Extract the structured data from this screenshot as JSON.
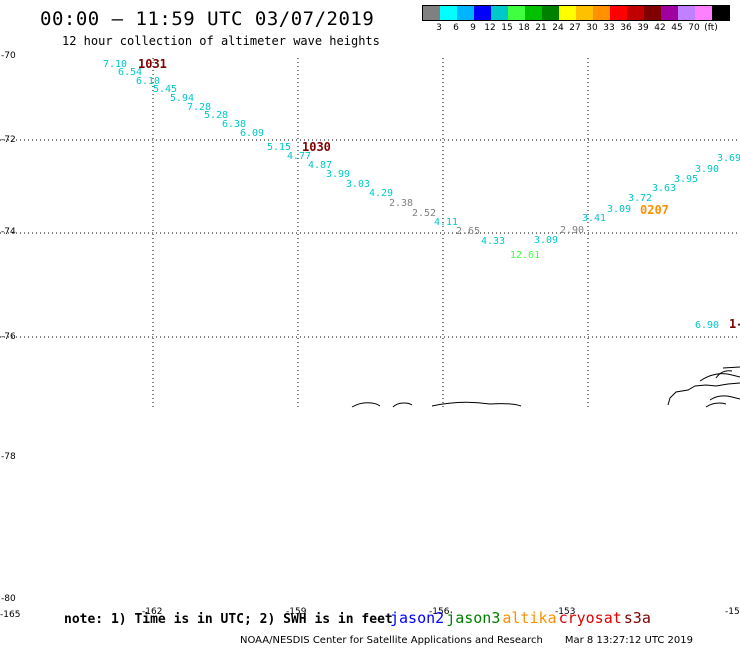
{
  "header": {
    "title": "00:00 – 11:59 UTC 03/07/2019",
    "subtitle": "12 hour collection of altimeter wave heights"
  },
  "legend": {
    "colors": [
      "#808080",
      "#00ffff",
      "#00b4ff",
      "#0000ff",
      "#00c8c8",
      "#40ff40",
      "#00c000",
      "#008000",
      "#ffff00",
      "#ffc000",
      "#ff9000",
      "#ff0000",
      "#c00000",
      "#800000",
      "#a000a0",
      "#c080ff",
      "#ff80ff",
      "#000000"
    ],
    "labels": [
      "3",
      "6",
      "9",
      "12",
      "15",
      "18",
      "21",
      "24",
      "27",
      "30",
      "33",
      "36",
      "39",
      "42",
      "45",
      "70",
      "(ft)"
    ]
  },
  "axes": {
    "lat_labels": [
      "-70",
      "-72",
      "-74",
      "-76",
      "-78",
      "-80"
    ],
    "lon_labels": [
      "-165",
      "-162",
      "-159",
      "-156",
      "-153",
      "-15"
    ]
  },
  "observations": [
    {
      "text": "7.10",
      "color": "#00c8c8"
    },
    {
      "text": "6.54",
      "color": "#00c8c8"
    },
    {
      "text": "6.10",
      "color": "#00c8c8"
    },
    {
      "text": "5.45",
      "color": "#00c8c8"
    },
    {
      "text": "5.94",
      "color": "#00c8c8"
    },
    {
      "text": "7.28",
      "color": "#00c8c8"
    },
    {
      "text": "5.28",
      "color": "#00c8c8"
    },
    {
      "text": "6.38",
      "color": "#00c8c8"
    },
    {
      "text": "6.09",
      "color": "#00c8c8"
    },
    {
      "text": "5.15",
      "color": "#00c8c8"
    },
    {
      "text": "4.77",
      "color": "#00c8c8"
    },
    {
      "text": "4.87",
      "color": "#00c8c8"
    },
    {
      "text": "3.99",
      "color": "#00c8c8"
    },
    {
      "text": "3.03",
      "color": "#00c8c8"
    },
    {
      "text": "4.29",
      "color": "#00c8c8"
    },
    {
      "text": "2.38",
      "color": "#808080"
    },
    {
      "text": "2.52",
      "color": "#808080"
    },
    {
      "text": "4.11",
      "color": "#00c8c8"
    },
    {
      "text": "2.65",
      "color": "#808080"
    },
    {
      "text": "4.33",
      "color": "#00c8c8"
    },
    {
      "text": "12.61",
      "color": "#40ff40"
    },
    {
      "text": "3.09",
      "color": "#00c8c8"
    },
    {
      "text": "2.90",
      "color": "#808080"
    },
    {
      "text": "3.41",
      "color": "#00c8c8"
    },
    {
      "text": "3.09",
      "color": "#00c8c8"
    },
    {
      "text": "3.72",
      "color": "#00c8c8"
    },
    {
      "text": "3.63",
      "color": "#00c8c8"
    },
    {
      "text": "3.95",
      "color": "#00c8c8"
    },
    {
      "text": "3.90",
      "color": "#00c8c8"
    },
    {
      "text": "3.69",
      "color": "#00c8c8"
    },
    {
      "text": "6.90",
      "color": "#00c8c8"
    }
  ],
  "time_labels": [
    {
      "text": "1031",
      "color": "#800000"
    },
    {
      "text": "1030",
      "color": "#800000"
    },
    {
      "text": "0207",
      "color": "#ff9000"
    },
    {
      "text": "1-",
      "color": "#800000"
    }
  ],
  "note": "note: 1) Time is in UTC; 2) SWH is in feet",
  "satellites": [
    {
      "name": "jason2",
      "color": "#0000ff"
    },
    {
      "name": "jason3",
      "color": "#008000"
    },
    {
      "name": "altika",
      "color": "#ff9000"
    },
    {
      "name": "cryosat",
      "color": "#e00000"
    },
    {
      "name": "s3a",
      "color": "#800000"
    }
  ],
  "footer": {
    "source": "NOAA/NESDIS Center for Satellite Applications and Research",
    "timestamp": "Mar  8 13:27:12 UTC 2019"
  }
}
